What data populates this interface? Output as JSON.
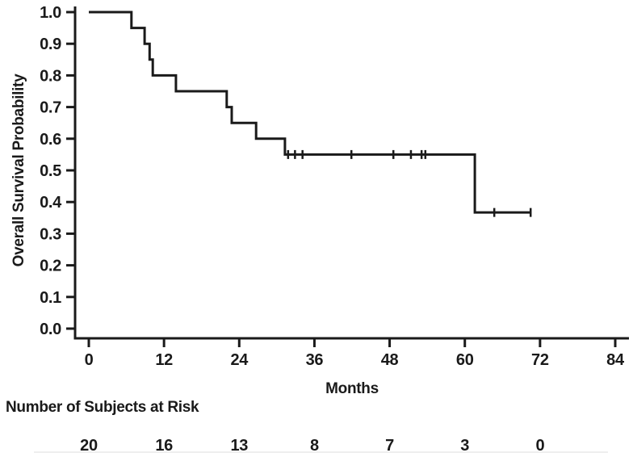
{
  "chart_data": {
    "type": "line",
    "subtype": "kaplan-meier-step-function",
    "title": "",
    "xlabel": "Months",
    "ylabel": "Overall Survival Probability",
    "xlim": [
      0,
      84
    ],
    "ylim": [
      0.0,
      1.0
    ],
    "xticks": [
      0,
      12,
      24,
      36,
      48,
      60,
      72,
      84
    ],
    "yticks": [
      0.0,
      0.1,
      0.2,
      0.3,
      0.4,
      0.5,
      0.6,
      0.7,
      0.8,
      0.9,
      1.0
    ],
    "grid": false,
    "legend": "none",
    "line_color": "#1a1a1a",
    "background": "#ffffff",
    "series": [
      {
        "name": "Overall Survival",
        "steps": [
          [
            0,
            1.0
          ],
          [
            6.8,
            0.95
          ],
          [
            8.9,
            0.9
          ],
          [
            9.7,
            0.85
          ],
          [
            10.2,
            0.8
          ],
          [
            13.9,
            0.75
          ],
          [
            22.0,
            0.7
          ],
          [
            22.8,
            0.65
          ],
          [
            26.7,
            0.6
          ],
          [
            31.3,
            0.55
          ],
          [
            61.6,
            0.367
          ]
        ],
        "end_time": 70.5,
        "censor_marks": [
          [
            31.8,
            0.55
          ],
          [
            32.9,
            0.55
          ],
          [
            34.1,
            0.55
          ],
          [
            41.9,
            0.55
          ],
          [
            48.6,
            0.55
          ],
          [
            51.4,
            0.55
          ],
          [
            53.1,
            0.55
          ],
          [
            53.7,
            0.55
          ],
          [
            64.7,
            0.367
          ],
          [
            70.5,
            0.367
          ]
        ]
      }
    ],
    "risk_table": {
      "title": "Number of Subjects at Risk",
      "times": [
        0,
        12,
        24,
        36,
        48,
        60,
        72
      ],
      "counts": [
        20,
        16,
        13,
        8,
        7,
        3,
        0
      ]
    }
  }
}
